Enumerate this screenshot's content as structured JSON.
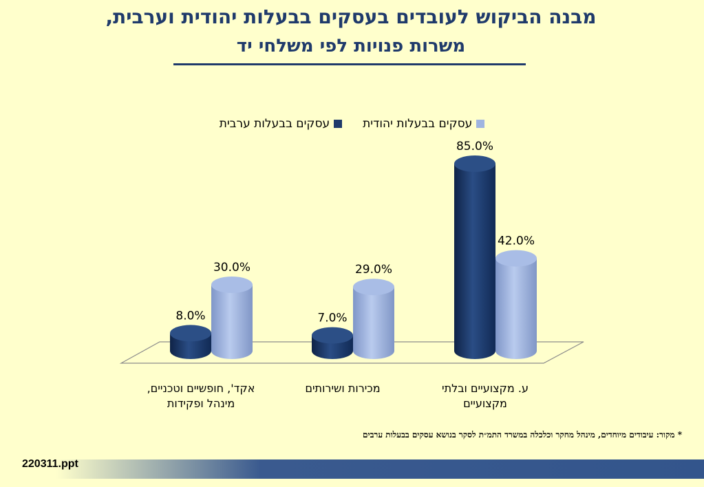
{
  "title_line1": "מבנה הביקוש לעובדים בעסקים בבעלות יהודית וערבית,",
  "title_line2": "משרות פנויות לפי משלחי יד",
  "legend": [
    {
      "label": "עסקים בבעלות יהודית",
      "color": "#9FB4E0"
    },
    {
      "label": "עסקים בבעלות ערבית",
      "color": "#1F3A6B"
    }
  ],
  "footnote": "* מקור: עיבודים מיוחדים, מינהל מחקר וכלכלה במשרד התמ״ת לסקר בנושא עסקים בבעלות ערבים",
  "file_label": "220311.ppt",
  "chart_data": {
    "type": "bar",
    "categories": [
      "ע. מקצועיים ובלתי מקצועיים",
      "מכירות ושירותים",
      "אקד', חופשיים וטכניים, מינהל ופקידות"
    ],
    "category_lines": [
      [
        "ע. מקצועיים ובלתי",
        "מקצועיים"
      ],
      [
        "מכירות ושירותים"
      ],
      [
        "אקד', חופשיים וטכניים,",
        "מינהל ופקידות"
      ]
    ],
    "series": [
      {
        "name": "עסקים בבעלות ערבית",
        "values": [
          85.0,
          7.0,
          8.0
        ],
        "labels": [
          "85.0%",
          "7.0%",
          "8.0%"
        ],
        "color": "#1F3A6B"
      },
      {
        "name": "עסקים בבעלות יהודית",
        "values": [
          42.0,
          29.0,
          30.0
        ],
        "labels": [
          "42.0%",
          "29.0%",
          "30.0%"
        ],
        "color": "#9FB4E0"
      }
    ],
    "ylim": [
      0,
      100
    ],
    "grid": false,
    "legend_position": "top"
  }
}
